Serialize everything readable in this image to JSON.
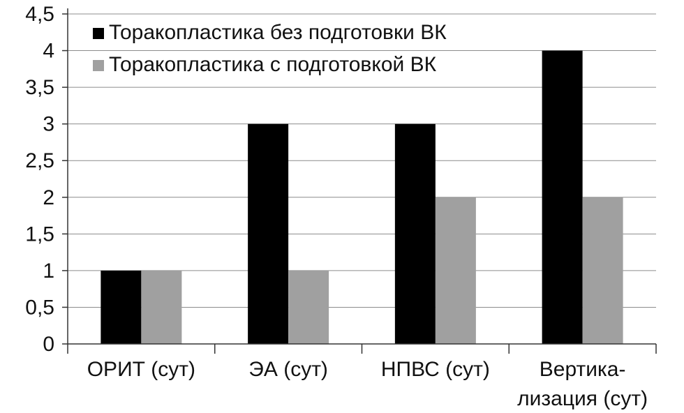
{
  "chart_data": {
    "type": "bar",
    "title": "",
    "xlabel": "",
    "ylabel": "",
    "ylim": [
      0,
      4.5
    ],
    "yticks": [
      "0",
      "0,5",
      "1",
      "1,5",
      "2",
      "2,5",
      "3",
      "3,5",
      "4",
      "4,5"
    ],
    "grid": true,
    "legend_position": "top-left",
    "categories": [
      [
        "ОРИТ (сут)"
      ],
      [
        "ЭА (сут)"
      ],
      [
        "НПВС (сут)"
      ],
      [
        "Вертика-",
        "лизация (сут)"
      ]
    ],
    "series": [
      {
        "name": "Торакопластика без подготовки ВК",
        "color": "#000000",
        "values": [
          1,
          3,
          3,
          4
        ]
      },
      {
        "name": "Торакопластика с подготовкой ВК",
        "color": "#a0a0a0",
        "values": [
          1,
          1,
          2,
          2
        ]
      }
    ]
  }
}
